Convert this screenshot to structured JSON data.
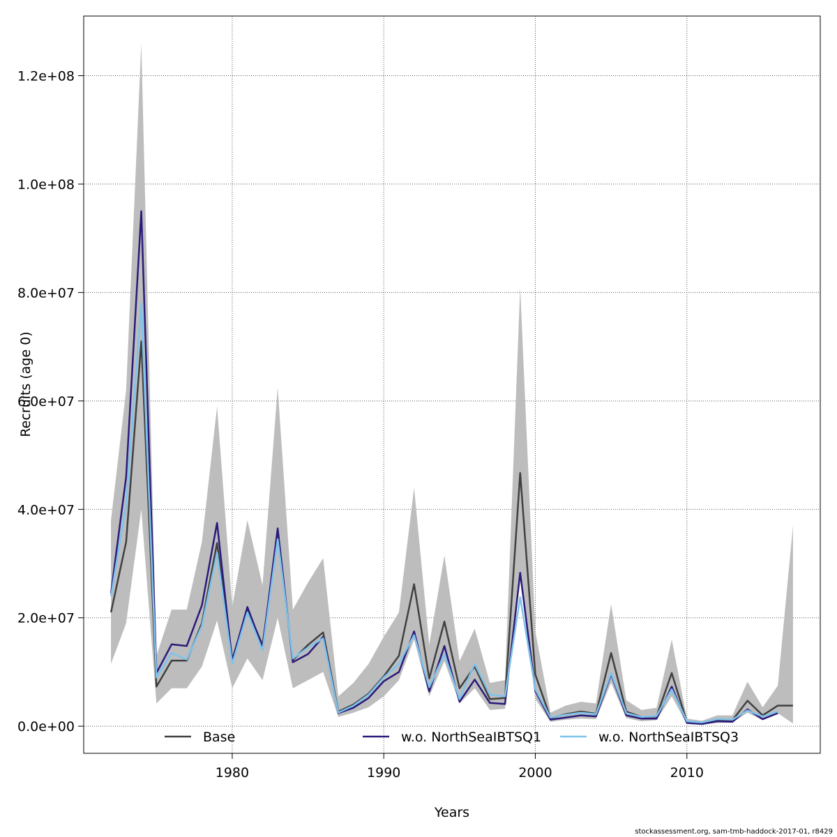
{
  "chart_data": {
    "type": "line",
    "xlabel": "Years",
    "ylabel": "Recruits (age 0)",
    "xlim": [
      1970.2,
      2018.8
    ],
    "ylim": [
      -5000000,
      131000000
    ],
    "xticks": [
      1980,
      1990,
      2000,
      2010
    ],
    "xtick_labels": [
      "1980",
      "1990",
      "2000",
      "2010"
    ],
    "yticks": [
      0,
      20000000,
      40000000,
      60000000,
      80000000,
      100000000,
      120000000
    ],
    "ytick_labels": [
      "0.0e+00",
      "2.0e+07",
      "4.0e+07",
      "6.0e+07",
      "8.0e+07",
      "1.0e+08",
      "1.2e+08"
    ],
    "grid": true,
    "legend_position": "bottom",
    "x": [
      1972,
      1973,
      1974,
      1975,
      1976,
      1977,
      1978,
      1979,
      1980,
      1981,
      1982,
      1983,
      1984,
      1985,
      1986,
      1987,
      1988,
      1989,
      1990,
      1991,
      1992,
      1993,
      1994,
      1995,
      1996,
      1997,
      1998,
      1999,
      2000,
      2001,
      2002,
      2003,
      2004,
      2005,
      2006,
      2007,
      2008,
      2009,
      2010,
      2011,
      2012,
      2013,
      2014,
      2015,
      2016,
      2017
    ],
    "confidence_band": {
      "upper": [
        38000000,
        62000000,
        126000000,
        13000000,
        21500000,
        21500000,
        34000000,
        59000000,
        22000000,
        38000000,
        26000000,
        62500000,
        21500000,
        26500000,
        31000000,
        5500000,
        8000000,
        11500000,
        16500000,
        21000000,
        44000000,
        15000000,
        31500000,
        12000000,
        18000000,
        8000000,
        8500000,
        81000000,
        17500000,
        2500000,
        3800000,
        4500000,
        4200000,
        22500000,
        4800000,
        3000000,
        3400000,
        16000000,
        1400000,
        1000000,
        2000000,
        2000000,
        8200000,
        3500000,
        7500000,
        37000000
      ],
      "lower": [
        11500000,
        19000000,
        40000000,
        4200000,
        7000000,
        7000000,
        11000000,
        19500000,
        7000000,
        12500000,
        8500000,
        20000000,
        7000000,
        8500000,
        10000000,
        1700000,
        2500000,
        3500000,
        5500000,
        8500000,
        16000000,
        5500000,
        12000000,
        4200000,
        7000000,
        3000000,
        3200000,
        27000000,
        5000000,
        800000,
        1200000,
        1400000,
        1300000,
        8000000,
        1500000,
        900000,
        1100000,
        5500000,
        400000,
        300000,
        600000,
        700000,
        2500000,
        1100000,
        2400000,
        500000
      ]
    },
    "series": [
      {
        "name": "Base",
        "color": "#404040",
        "values": [
          21000000,
          34000000,
          71000000,
          7300000,
          12100000,
          12100000,
          19000000,
          33800000,
          12300000,
          21500000,
          15000000,
          35000000,
          12200000,
          15000000,
          17300000,
          2700000,
          4000000,
          6000000,
          9200000,
          13000000,
          26200000,
          8800000,
          19300000,
          7000000,
          11000000,
          5000000,
          5200000,
          46700000,
          9500000,
          1500000,
          2200000,
          2700000,
          2300000,
          13500000,
          2700000,
          1700000,
          1800000,
          9800000,
          800000,
          600000,
          1100000,
          1100000,
          4700000,
          2000000,
          3800000,
          3800000
        ]
      },
      {
        "name": "w.o. NorthSeaIBTSQ1",
        "color": "#2a1a7a",
        "values": [
          24500000,
          46000000,
          95000000,
          9800000,
          15100000,
          14800000,
          22300000,
          37500000,
          12000000,
          22000000,
          14500000,
          36500000,
          11800000,
          13300000,
          16500000,
          2400000,
          3400000,
          5200000,
          8300000,
          10000000,
          17500000,
          6400000,
          14800000,
          4500000,
          8600000,
          4300000,
          4100000,
          28300000,
          6500000,
          1200000,
          1600000,
          2000000,
          1800000,
          9600000,
          2000000,
          1400000,
          1400000,
          7300000,
          600000,
          400000,
          900000,
          800000,
          3100000,
          1300000,
          2400000,
          null
        ]
      },
      {
        "name": "w.o. NorthSeaIBTSQ3",
        "color": "#7ec3ec",
        "values": [
          24000000,
          41000000,
          78000000,
          9000000,
          13500000,
          12300000,
          18500000,
          32000000,
          11500000,
          21000000,
          14000000,
          34500000,
          12500000,
          14500000,
          16200000,
          2500000,
          3800000,
          5800000,
          9000000,
          11500000,
          16800000,
          7200000,
          13300000,
          5000000,
          11500000,
          5800000,
          5500000,
          23800000,
          6800000,
          1600000,
          2100000,
          2500000,
          2200000,
          9800000,
          2400000,
          1700000,
          1900000,
          6800000,
          900000,
          700000,
          1300000,
          1200000,
          2900000,
          1800000,
          2700000,
          null
        ]
      }
    ]
  },
  "footer": "stockassessment.org, sam-tmb-haddock-2017-01, r8429"
}
